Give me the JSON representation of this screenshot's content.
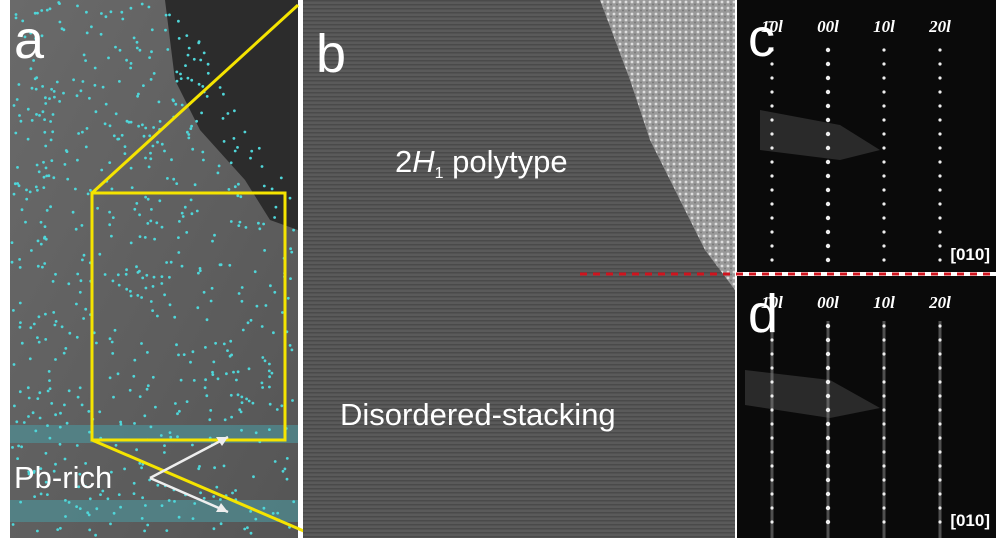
{
  "panels": [
    {
      "label": "a",
      "annotation": "Pb-rich"
    },
    {
      "label": "b",
      "phase_top": {
        "number": "2",
        "italic": "H",
        "subscript": "1",
        "rest": " polytype"
      },
      "phase_bottom": "Disordered-stacking"
    },
    {
      "label": "c",
      "reflections": [
        "1̄0l",
        "00l",
        "10l",
        "20l"
      ],
      "zone_axis": "[010]"
    },
    {
      "label": "d",
      "reflections": [
        "1̄0l",
        "00l",
        "10l",
        "20l"
      ],
      "zone_axis": "[010]"
    }
  ]
}
